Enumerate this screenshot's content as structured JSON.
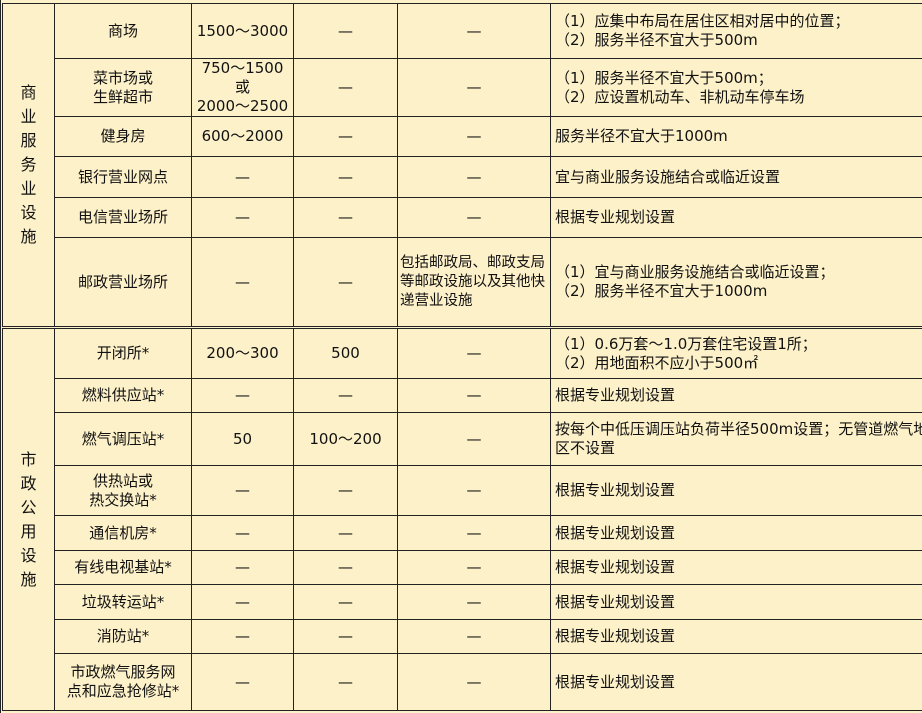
{
  "groups": [
    {
      "name": "商业服务业设施",
      "rows": [
        {
          "facility": "商场",
          "c2": "1500～3000",
          "c3": "—",
          "c4": "—",
          "note": [
            "（1）应集中布局在居住区相对居中的位置；",
            "（2）服务半径不宜大于500m"
          ]
        },
        {
          "facility": "菜市场或\n生鲜超市",
          "c2": "750～1500或\n2000～2500",
          "c3": "—",
          "c4": "—",
          "note": [
            "（1）服务半径不宜大于500m；",
            "（2）应设置机动车、非机动车停车场"
          ]
        },
        {
          "facility": "健身房",
          "c2": "600～2000",
          "c3": "—",
          "c4": "—",
          "note": [
            "服务半径不宜大于1000m"
          ]
        },
        {
          "facility": "银行营业网点",
          "c2": "—",
          "c3": "—",
          "c4": "—",
          "note": [
            "宜与商业服务设施结合或临近设置"
          ]
        },
        {
          "facility": "电信营业场所",
          "c2": "—",
          "c3": "—",
          "c4": "—",
          "note": [
            "根据专业规划设置"
          ]
        },
        {
          "facility": "邮政营业场所",
          "c2": "—",
          "c3": "—",
          "c4": "包括邮政局、邮政支局等邮政设施以及其他快递营业设施",
          "note": [
            "（1）宜与商业服务设施结合或临近设置；",
            "（2）服务半径不宜大于1000m"
          ]
        }
      ]
    },
    {
      "name": "市政公用设施",
      "rows": [
        {
          "facility": "开闭所*",
          "c2": "200～300",
          "c3": "500",
          "c4": "—",
          "note": [
            "（1）0.6万套～1.0万套住宅设置1所；",
            "（2）用地面积不应小于500㎡"
          ]
        },
        {
          "facility": "燃料供应站*",
          "c2": "—",
          "c3": "—",
          "c4": "—",
          "note": [
            "根据专业规划设置"
          ]
        },
        {
          "facility": "燃气调压站*",
          "c2": "50",
          "c3": "100～200",
          "c4": "—",
          "note": [
            "按每个中低压调压站负荷半径500m设置；无管道燃气地区不设置"
          ]
        },
        {
          "facility": "供热站或\n热交换站*",
          "c2": "—",
          "c3": "—",
          "c4": "—",
          "note": [
            "根据专业规划设置"
          ]
        },
        {
          "facility": "通信机房*",
          "c2": "—",
          "c3": "—",
          "c4": "—",
          "note": [
            "根据专业规划设置"
          ]
        },
        {
          "facility": "有线电视基站*",
          "c2": "—",
          "c3": "—",
          "c4": "—",
          "note": [
            "根据专业规划设置"
          ]
        },
        {
          "facility": "垃圾转运站*",
          "c2": "—",
          "c3": "—",
          "c4": "—",
          "note": [
            "根据专业规划设置"
          ]
        },
        {
          "facility": "消防站*",
          "c2": "—",
          "c3": "—",
          "c4": "—",
          "note": [
            "根据专业规划设置"
          ]
        },
        {
          "facility": "市政燃气服务网\n点和应急抢修站*",
          "c2": "—",
          "c3": "—",
          "c4": "—",
          "note": [
            "根据专业规划设置"
          ]
        }
      ]
    }
  ]
}
